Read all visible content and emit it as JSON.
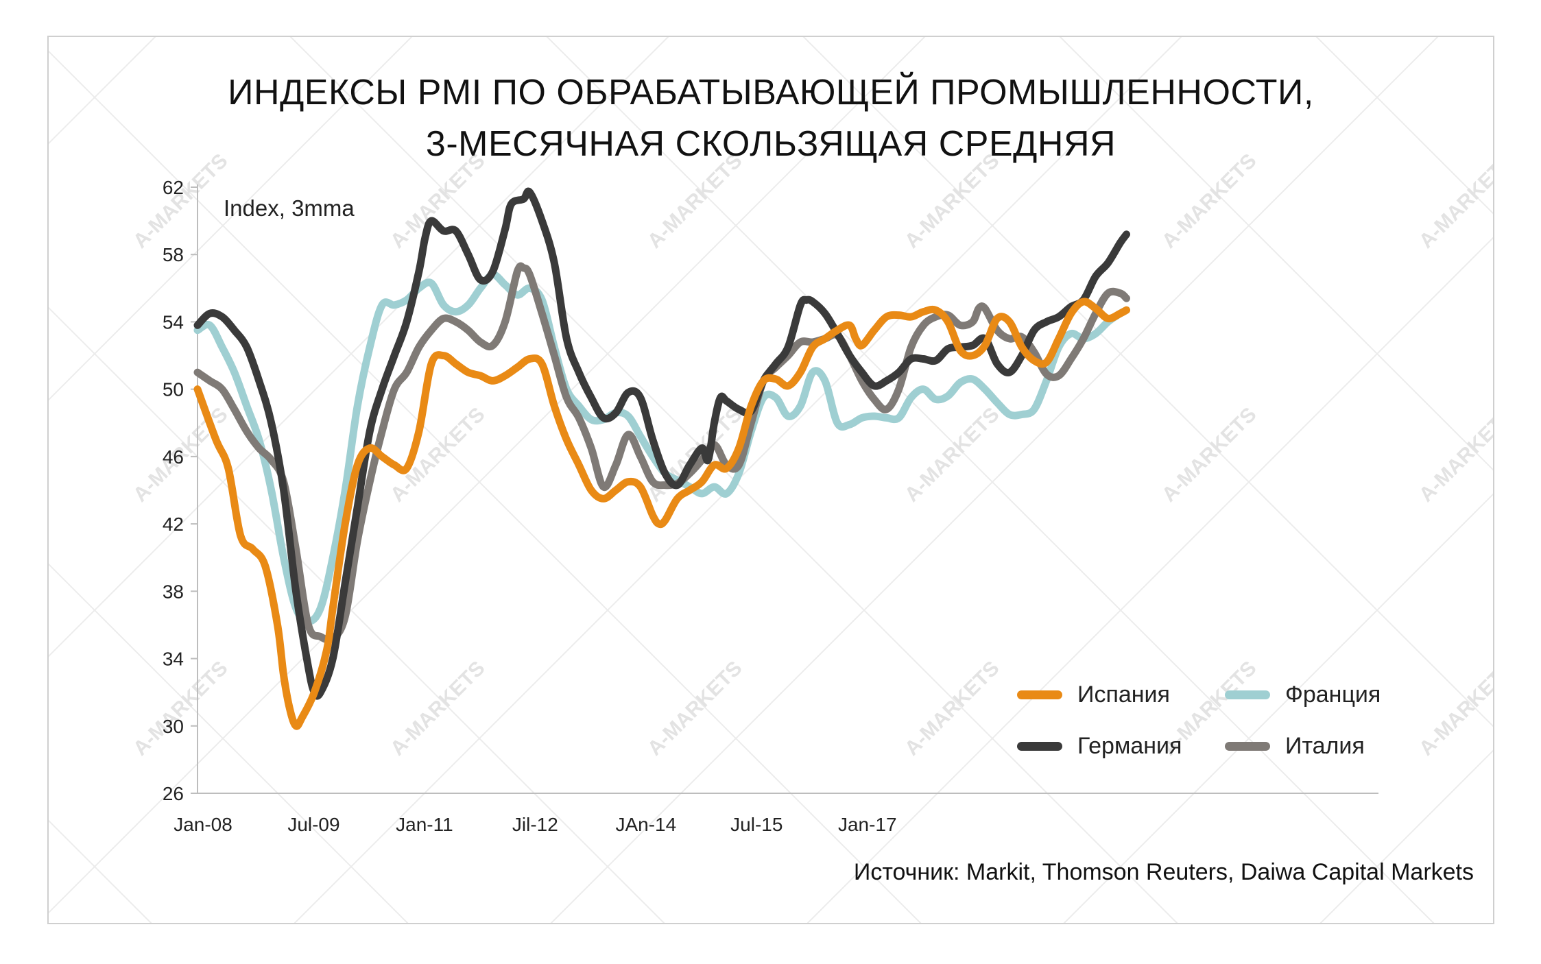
{
  "title": {
    "line1": "ИНДЕКСЫ PMI ПО ОБРАБАТЫВАЮЩЕЙ ПРОМЫШЛЕННОСТИ,",
    "line2": "3-МЕСЯЧНАЯ СКОЛЬЗЯЩАЯ СРЕДНЯЯ"
  },
  "unit_label": "Index, 3mma",
  "source": "Источник: Markit, Thomson Reuters, Daiwa Capital Markets",
  "watermark_text": "A-MARKETS",
  "chart_data": {
    "type": "line",
    "ylim": [
      26,
      62
    ],
    "yticks": [
      26,
      30,
      34,
      38,
      42,
      46,
      50,
      54,
      58,
      62
    ],
    "xticks": [
      "Jan-08",
      "Jul-09",
      "Jan-11",
      "Jil-12",
      "JAn-14",
      "Jul-15",
      "Jan-17"
    ],
    "x_start": "Jan-08",
    "grid": false,
    "legend_position": "bottom-right",
    "series": [
      {
        "name": "Испания",
        "color": "#e98a15",
        "points": [
          [
            0,
            50
          ],
          [
            3,
            47
          ],
          [
            5,
            45.3
          ],
          [
            7,
            41.3
          ],
          [
            9,
            40.5
          ],
          [
            11,
            39.5
          ],
          [
            13,
            36
          ],
          [
            14,
            33
          ],
          [
            15,
            31
          ],
          [
            16,
            30
          ],
          [
            17,
            30.5
          ],
          [
            19,
            32
          ],
          [
            21,
            34.5
          ],
          [
            22,
            37
          ],
          [
            24,
            42
          ],
          [
            26,
            45.5
          ],
          [
            28,
            46.5
          ],
          [
            30,
            46
          ],
          [
            32,
            45.5
          ],
          [
            34,
            45.3
          ],
          [
            36,
            47.5
          ],
          [
            38,
            51.5
          ],
          [
            40,
            52
          ],
          [
            42,
            51.5
          ],
          [
            44,
            51
          ],
          [
            46,
            50.8
          ],
          [
            48,
            50.5
          ],
          [
            50,
            50.8
          ],
          [
            52,
            51.3
          ],
          [
            54,
            51.8
          ],
          [
            56,
            51.5
          ],
          [
            58,
            49
          ],
          [
            60,
            47
          ],
          [
            62,
            45.5
          ],
          [
            64,
            44
          ],
          [
            66,
            43.5
          ],
          [
            68,
            44
          ],
          [
            70,
            44.5
          ],
          [
            72,
            44.2
          ],
          [
            74,
            42.5
          ],
          [
            75,
            42
          ],
          [
            76,
            42.2
          ],
          [
            78,
            43.5
          ],
          [
            80,
            44
          ],
          [
            82,
            44.5
          ],
          [
            84,
            45.5
          ],
          [
            86,
            45.3
          ],
          [
            88,
            46.5
          ],
          [
            90,
            49
          ],
          [
            92,
            50.5
          ],
          [
            94,
            50.6
          ],
          [
            96,
            50.2
          ],
          [
            98,
            51
          ],
          [
            100,
            52.5
          ],
          [
            102,
            53
          ],
          [
            104,
            53.5
          ],
          [
            106,
            53.8
          ],
          [
            107,
            53
          ],
          [
            108,
            52.6
          ],
          [
            110,
            53.5
          ],
          [
            112,
            54.3
          ],
          [
            114,
            54.4
          ],
          [
            116,
            54.3
          ],
          [
            118,
            54.6
          ],
          [
            120,
            54.7
          ],
          [
            122,
            54
          ],
          [
            124,
            52.3
          ],
          [
            126,
            52
          ],
          [
            128,
            52.6
          ],
          [
            130,
            54.2
          ],
          [
            132,
            54
          ],
          [
            134,
            52.5
          ],
          [
            136,
            51.7
          ],
          [
            138,
            51.6
          ],
          [
            140,
            53
          ],
          [
            142,
            54.5
          ],
          [
            144,
            55.2
          ],
          [
            146,
            54.8
          ],
          [
            148,
            54.2
          ],
          [
            150,
            54.5
          ],
          [
            151,
            54.7
          ]
        ]
      },
      {
        "name": "Франция",
        "color": "#9fcfd2",
        "points": [
          [
            0,
            53.5
          ],
          [
            2,
            53.8
          ],
          [
            4,
            52.5
          ],
          [
            6,
            51
          ],
          [
            8,
            49
          ],
          [
            10,
            47
          ],
          [
            12,
            44
          ],
          [
            14,
            40
          ],
          [
            16,
            37
          ],
          [
            18,
            36.2
          ],
          [
            20,
            37
          ],
          [
            22,
            40
          ],
          [
            24,
            44
          ],
          [
            26,
            49
          ],
          [
            28,
            52.5
          ],
          [
            30,
            55
          ],
          [
            32,
            55
          ],
          [
            34,
            55.3
          ],
          [
            36,
            56
          ],
          [
            38,
            56.3
          ],
          [
            40,
            55
          ],
          [
            42,
            54.6
          ],
          [
            44,
            55
          ],
          [
            46,
            56
          ],
          [
            48,
            56.8
          ],
          [
            50,
            56.2
          ],
          [
            52,
            55.6
          ],
          [
            54,
            56
          ],
          [
            56,
            55.3
          ],
          [
            58,
            52.5
          ],
          [
            60,
            50
          ],
          [
            62,
            49
          ],
          [
            64,
            48.2
          ],
          [
            66,
            48.2
          ],
          [
            68,
            48.6
          ],
          [
            70,
            48.4
          ],
          [
            72,
            47.2
          ],
          [
            74,
            46
          ],
          [
            76,
            45
          ],
          [
            78,
            44.6
          ],
          [
            80,
            44.2
          ],
          [
            82,
            43.8
          ],
          [
            84,
            44.2
          ],
          [
            86,
            43.8
          ],
          [
            88,
            45
          ],
          [
            90,
            47.5
          ],
          [
            92,
            49.5
          ],
          [
            94,
            49.5
          ],
          [
            96,
            48.4
          ],
          [
            98,
            49
          ],
          [
            100,
            51
          ],
          [
            102,
            50.5
          ],
          [
            104,
            48
          ],
          [
            106,
            47.9
          ],
          [
            108,
            48.3
          ],
          [
            110,
            48.4
          ],
          [
            112,
            48.3
          ],
          [
            114,
            48.3
          ],
          [
            116,
            49.5
          ],
          [
            118,
            50
          ],
          [
            120,
            49.4
          ],
          [
            122,
            49.6
          ],
          [
            124,
            50.4
          ],
          [
            126,
            50.6
          ],
          [
            128,
            50
          ],
          [
            130,
            49.2
          ],
          [
            132,
            48.5
          ],
          [
            134,
            48.5
          ],
          [
            136,
            48.8
          ],
          [
            138,
            50.5
          ],
          [
            140,
            52.5
          ],
          [
            142,
            53.3
          ],
          [
            144,
            53
          ],
          [
            146,
            53.3
          ],
          [
            148,
            54
          ],
          [
            150,
            54.5
          ],
          [
            151,
            54.7
          ]
        ]
      },
      {
        "name": "Германия",
        "color": "#3a3a3a",
        "points": [
          [
            0,
            53.8
          ],
          [
            2,
            54.5
          ],
          [
            4,
            54.3
          ],
          [
            6,
            53.5
          ],
          [
            8,
            52.5
          ],
          [
            10,
            50.5
          ],
          [
            12,
            48
          ],
          [
            14,
            44
          ],
          [
            16,
            38
          ],
          [
            18,
            33.5
          ],
          [
            19,
            32
          ],
          [
            20,
            32
          ],
          [
            22,
            34
          ],
          [
            24,
            38.5
          ],
          [
            26,
            43
          ],
          [
            28,
            47.5
          ],
          [
            30,
            50
          ],
          [
            32,
            52
          ],
          [
            34,
            54
          ],
          [
            36,
            57
          ],
          [
            37,
            59
          ],
          [
            38,
            60
          ],
          [
            40,
            59.4
          ],
          [
            42,
            59.4
          ],
          [
            44,
            58
          ],
          [
            46,
            56.5
          ],
          [
            48,
            57
          ],
          [
            50,
            59.5
          ],
          [
            51,
            61
          ],
          [
            53,
            61.3
          ],
          [
            54,
            61.7
          ],
          [
            56,
            60
          ],
          [
            58,
            57.5
          ],
          [
            60,
            53
          ],
          [
            62,
            51
          ],
          [
            64,
            49.5
          ],
          [
            66,
            48.3
          ],
          [
            68,
            48.6
          ],
          [
            70,
            49.8
          ],
          [
            72,
            49.5
          ],
          [
            74,
            47
          ],
          [
            76,
            45
          ],
          [
            78,
            44.3
          ],
          [
            80,
            45.5
          ],
          [
            82,
            46.5
          ],
          [
            83,
            45.8
          ],
          [
            84,
            48
          ],
          [
            85,
            49.5
          ],
          [
            86,
            49.3
          ],
          [
            88,
            48.8
          ],
          [
            90,
            48.7
          ],
          [
            92,
            50.5
          ],
          [
            94,
            51.5
          ],
          [
            96,
            52.5
          ],
          [
            98,
            55
          ],
          [
            99,
            55.3
          ],
          [
            100,
            55.2
          ],
          [
            102,
            54.5
          ],
          [
            104,
            53.3
          ],
          [
            106,
            52
          ],
          [
            108,
            51
          ],
          [
            110,
            50.2
          ],
          [
            112,
            50.5
          ],
          [
            114,
            51
          ],
          [
            116,
            51.8
          ],
          [
            118,
            51.8
          ],
          [
            120,
            51.7
          ],
          [
            122,
            52.4
          ],
          [
            124,
            52.5
          ],
          [
            126,
            52.6
          ],
          [
            128,
            53
          ],
          [
            130,
            51.5
          ],
          [
            132,
            51
          ],
          [
            134,
            52
          ],
          [
            136,
            53.5
          ],
          [
            138,
            54
          ],
          [
            140,
            54.3
          ],
          [
            142,
            54.9
          ],
          [
            144,
            55.3
          ],
          [
            146,
            56.7
          ],
          [
            148,
            57.5
          ],
          [
            150,
            58.7
          ],
          [
            151,
            59.2
          ]
        ]
      },
      {
        "name": "Италия",
        "color": "#7f7a76",
        "points": [
          [
            0,
            51
          ],
          [
            2,
            50.5
          ],
          [
            4,
            50
          ],
          [
            6,
            48.8
          ],
          [
            8,
            47.5
          ],
          [
            10,
            46.5
          ],
          [
            12,
            45.8
          ],
          [
            14,
            44.5
          ],
          [
            16,
            40.5
          ],
          [
            18,
            36
          ],
          [
            20,
            35.3
          ],
          [
            22,
            35.2
          ],
          [
            24,
            36.5
          ],
          [
            26,
            41
          ],
          [
            28,
            44.5
          ],
          [
            30,
            47.5
          ],
          [
            32,
            50
          ],
          [
            34,
            51
          ],
          [
            36,
            52.5
          ],
          [
            38,
            53.5
          ],
          [
            40,
            54.2
          ],
          [
            42,
            54
          ],
          [
            44,
            53.5
          ],
          [
            46,
            52.8
          ],
          [
            48,
            52.6
          ],
          [
            50,
            54
          ],
          [
            52,
            57
          ],
          [
            53,
            57.2
          ],
          [
            54,
            56.8
          ],
          [
            56,
            54.5
          ],
          [
            58,
            52
          ],
          [
            60,
            49.5
          ],
          [
            62,
            48.3
          ],
          [
            64,
            46.5
          ],
          [
            66,
            44.2
          ],
          [
            68,
            45.5
          ],
          [
            70,
            47.3
          ],
          [
            72,
            46
          ],
          [
            74,
            44.5
          ],
          [
            76,
            44.3
          ],
          [
            78,
            44.4
          ],
          [
            80,
            45
          ],
          [
            82,
            45.8
          ],
          [
            84,
            46.7
          ],
          [
            86,
            45.5
          ],
          [
            88,
            45.5
          ],
          [
            90,
            48
          ],
          [
            92,
            50.5
          ],
          [
            94,
            51.3
          ],
          [
            96,
            52
          ],
          [
            98,
            52.8
          ],
          [
            100,
            52.8
          ],
          [
            102,
            53
          ],
          [
            104,
            53.2
          ],
          [
            106,
            52
          ],
          [
            108,
            50.5
          ],
          [
            110,
            49.4
          ],
          [
            112,
            48.8
          ],
          [
            114,
            50
          ],
          [
            116,
            52.5
          ],
          [
            118,
            53.8
          ],
          [
            120,
            54.3
          ],
          [
            122,
            54.4
          ],
          [
            124,
            53.8
          ],
          [
            126,
            54
          ],
          [
            127,
            54.8
          ],
          [
            128,
            54.8
          ],
          [
            130,
            53.5
          ],
          [
            132,
            53
          ],
          [
            134,
            53.1
          ],
          [
            136,
            52.2
          ],
          [
            138,
            50.9
          ],
          [
            140,
            50.8
          ],
          [
            142,
            51.8
          ],
          [
            144,
            53
          ],
          [
            146,
            54.5
          ],
          [
            148,
            55.7
          ],
          [
            150,
            55.7
          ],
          [
            151,
            55.4
          ]
        ]
      }
    ]
  }
}
